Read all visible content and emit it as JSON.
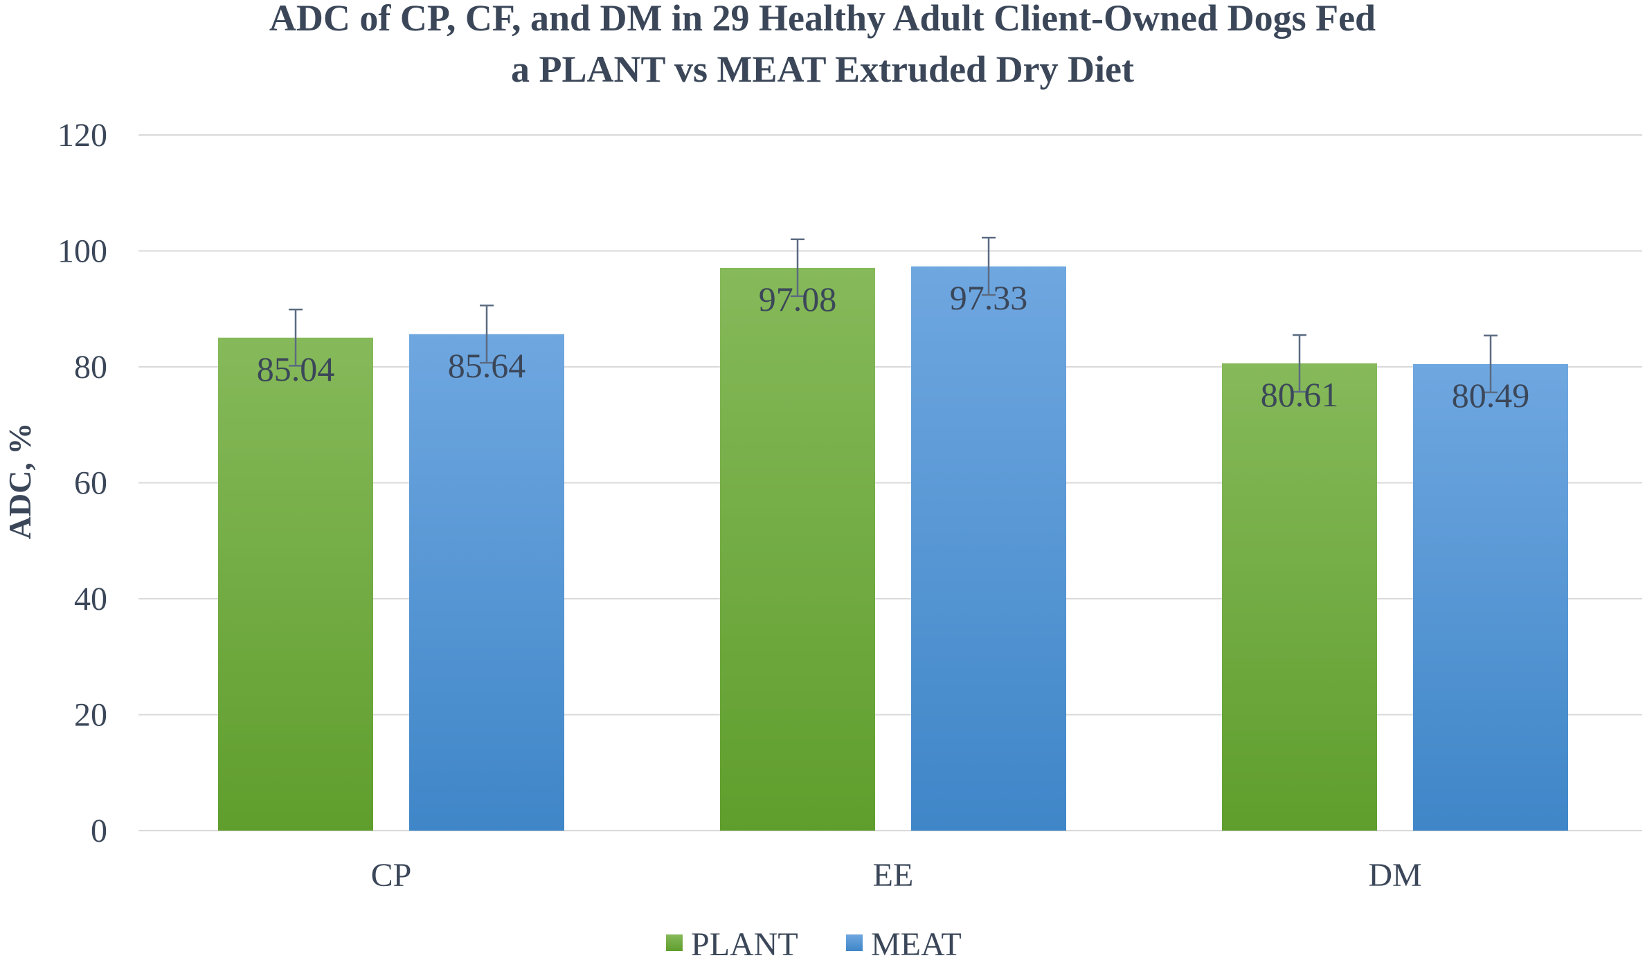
{
  "chart_data": {
    "type": "bar",
    "title_line1": "ADC of CP, CF, and DM in 29 Healthy Adult Client-Owned Dogs Fed",
    "title_line2": "a PLANT vs MEAT Extruded Dry Diet",
    "xlabel": "",
    "ylabel": "ADC, %",
    "ylim": [
      0,
      120
    ],
    "yticks": [
      0,
      20,
      40,
      60,
      80,
      100,
      120
    ],
    "grid": true,
    "legend_position": "bottom",
    "categories": [
      "CP",
      "EE",
      "DM"
    ],
    "series": [
      {
        "name": "PLANT",
        "values": [
          85.04,
          97.08,
          80.61
        ],
        "labels": [
          "85.04",
          "97.08",
          "80.61"
        ],
        "error_upper": [
          89.9,
          102.0,
          85.5
        ],
        "error_lower": [
          80.2,
          92.2,
          75.7
        ],
        "color_top": "#86b95a",
        "color_bottom": "#5f9e2d"
      },
      {
        "name": "MEAT",
        "values": [
          85.64,
          97.33,
          80.49
        ],
        "labels": [
          "85.64",
          "97.33",
          "80.49"
        ],
        "error_upper": [
          90.6,
          102.3,
          85.4
        ],
        "error_lower": [
          80.7,
          92.4,
          75.6
        ],
        "color_top": "#6fa7e0",
        "color_bottom": "#3f86c8"
      }
    ],
    "colors": {
      "text": "#3b4759",
      "grid": "#d9d9d9",
      "error_bar": "#5b6b82",
      "background": "#ffffff"
    }
  }
}
